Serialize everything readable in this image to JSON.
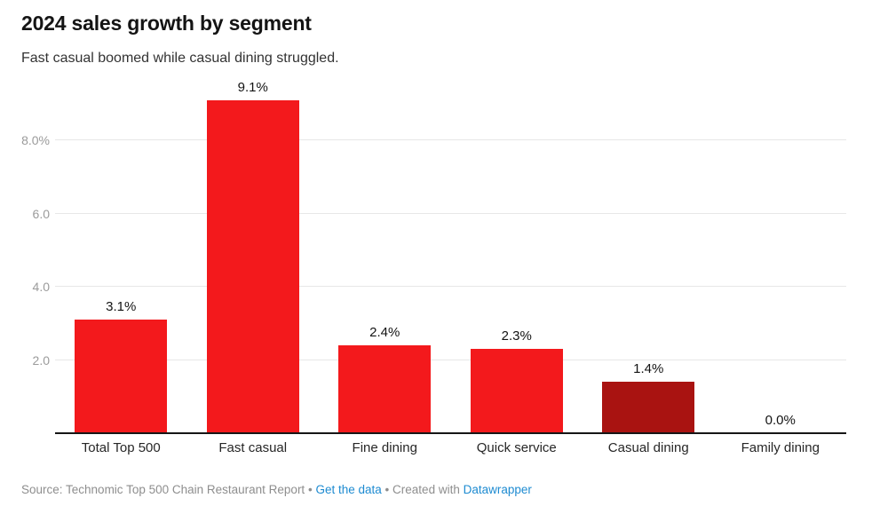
{
  "header": {
    "title": "2024 sales growth by segment",
    "subtitle": "Fast casual boomed while casual dining struggled."
  },
  "chart_data": {
    "type": "bar",
    "title": "2024 sales growth by segment",
    "subtitle": "Fast casual boomed while casual dining struggled.",
    "categories": [
      "Total Top 500",
      "Fast casual",
      "Fine dining",
      "Quick service",
      "Casual dining",
      "Family dining"
    ],
    "values": [
      3.1,
      9.1,
      2.4,
      2.3,
      1.4,
      0.0
    ],
    "value_labels": [
      "3.1%",
      "9.1%",
      "2.4%",
      "2.3%",
      "1.4%",
      "0.0%"
    ],
    "bar_colors": [
      "#f3191c",
      "#f3191c",
      "#f3191c",
      "#f3191c",
      "#a91311",
      "#f3191c"
    ],
    "xlabel": "",
    "ylabel": "",
    "ylim": [
      0,
      9.65
    ],
    "yticks": [
      2,
      4,
      6,
      8
    ],
    "ytick_labels": [
      "2.0",
      "4.0",
      "6.0",
      "8.0%"
    ],
    "grid": true,
    "legend": false
  },
  "colors": {
    "bar_red": "#f3191c",
    "bar_dark_red": "#a91311",
    "gridline": "#e7e7e7",
    "axis_line": "#161616",
    "ytick_label": "#9b9b9b",
    "value_label": "#131313",
    "category_label": "#272727",
    "footer_text": "#8e8e8e",
    "link_blue": "#1e8bd1"
  },
  "footer": {
    "source_text": "Source: Technomic Top 500 Chain Restaurant Report",
    "separator": "•",
    "get_data_link": "Get the data",
    "created_with": "Created with",
    "datawrapper_link": "Datawrapper"
  }
}
